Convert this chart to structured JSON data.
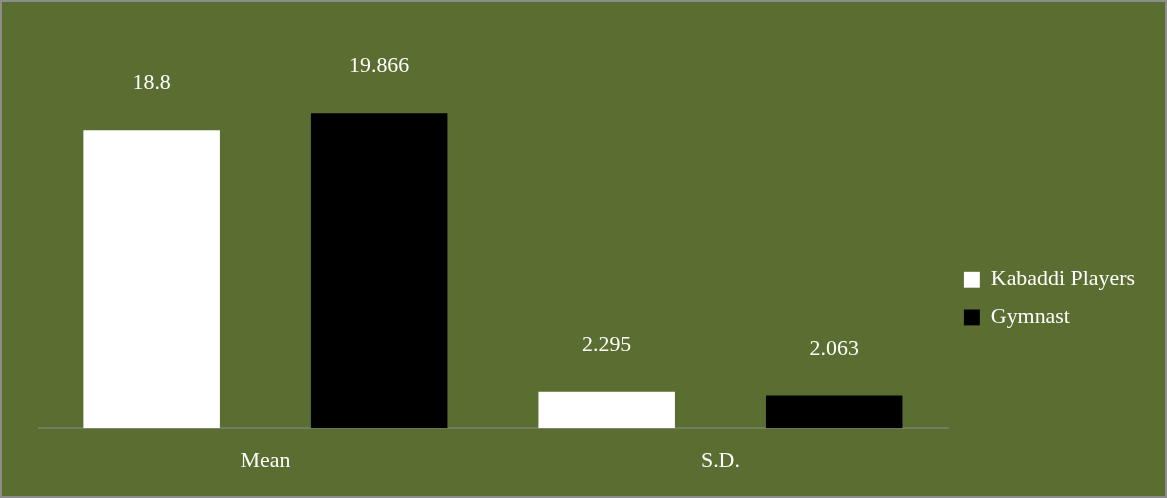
{
  "chart_data": {
    "type": "bar",
    "categories": [
      "Mean",
      "S.D."
    ],
    "series": [
      {
        "name": "Kabaddi Players",
        "color": "#ffffff",
        "values": [
          18.8,
          2.295
        ]
      },
      {
        "name": "Gymnast",
        "color": "#000000",
        "values": [
          19.866,
          2.063
        ]
      }
    ],
    "data_labels": true,
    "legend": "right",
    "grid": false
  }
}
